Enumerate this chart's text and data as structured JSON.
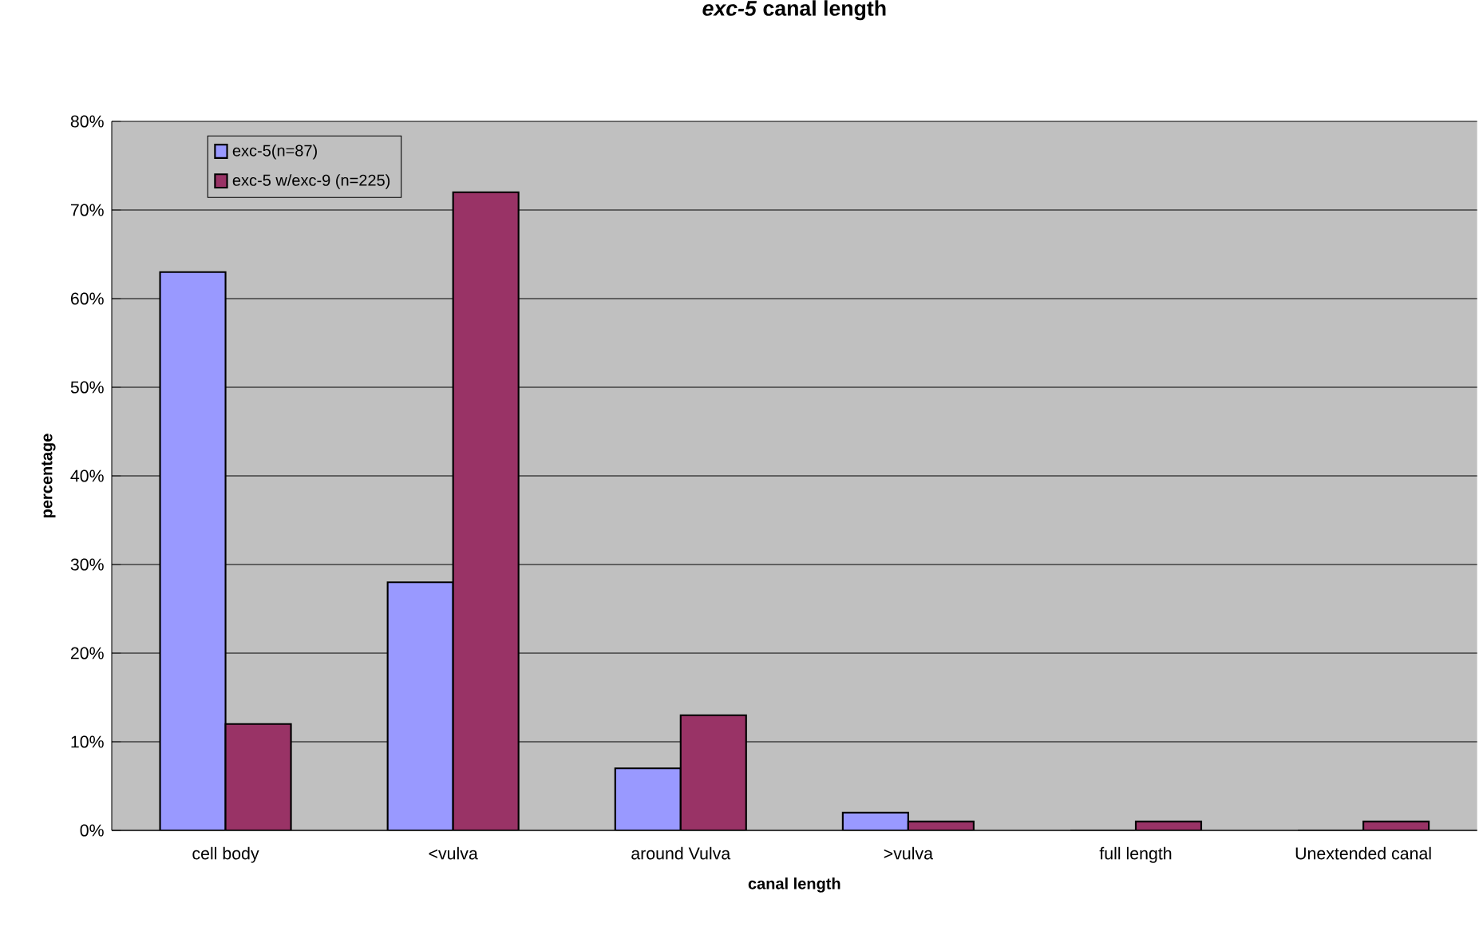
{
  "chart_data": {
    "type": "bar",
    "title": "*exc-5* canal length",
    "xlabel": "canal length",
    "ylabel": "percentage",
    "categories": [
      "cell body",
      "<vulva",
      "around Vulva",
      ">vulva",
      "full length",
      "Unextended canal"
    ],
    "series": [
      {
        "name": "exc-5(n=87)",
        "color": "#9999ff",
        "values": [
          63,
          28,
          7,
          2,
          0,
          0
        ]
      },
      {
        "name": "exc-5 w/exc-9 (n=225)",
        "color": "#993366",
        "values": [
          12,
          72,
          13,
          1,
          1,
          1
        ]
      }
    ],
    "ylim": [
      0,
      80
    ],
    "yticks": [
      {
        "value": 0,
        "label": "0%"
      },
      {
        "value": 10,
        "label": "10%"
      },
      {
        "value": 20,
        "label": "20%"
      },
      {
        "value": 30,
        "label": "30%"
      },
      {
        "value": 40,
        "label": "40%"
      },
      {
        "value": 50,
        "label": "50%"
      },
      {
        "value": 60,
        "label": "60%"
      },
      {
        "value": 70,
        "label": "70%"
      },
      {
        "value": 80,
        "label": "80%"
      }
    ],
    "grid": "y",
    "legend": "top left"
  }
}
